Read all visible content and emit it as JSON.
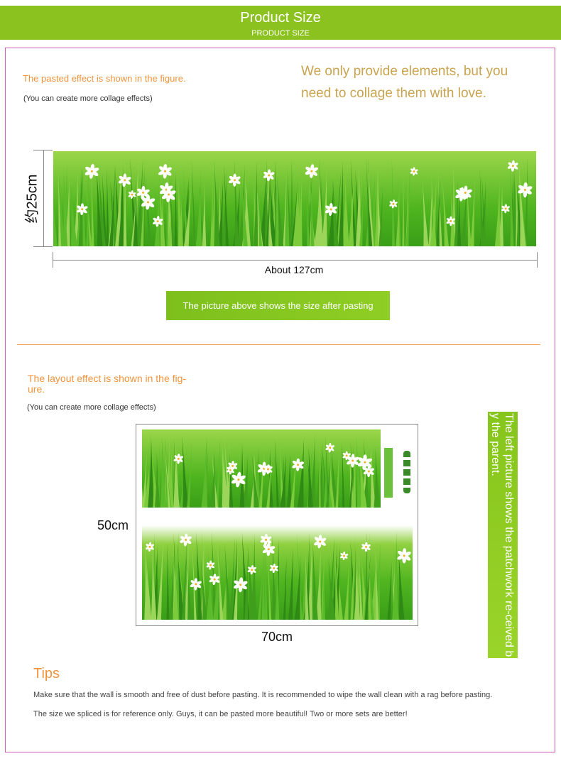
{
  "header": {
    "title": "Product Size",
    "subtitle": "PRODUCT SIZE"
  },
  "section1": {
    "heading": "The pasted effect is shown in the figure.",
    "note": "(You can create more collage effects)",
    "slogan_line1": "We only provide elements, but you",
    "slogan_line2": "need to collage them with love.",
    "height_label": "约25cm",
    "width_label": "About 127cm",
    "caption": "The picture above shows the size after pasting"
  },
  "section2": {
    "heading": "The layout effect is shown in the fig-\nure.",
    "note": "(You can create more collage effects)",
    "height_label": "50cm",
    "width_label": "70cm",
    "side_caption": "The left picture shows the patchwork re-ceived by the parent."
  },
  "tips": {
    "title": "Tips",
    "lines": [
      "Make sure that the wall is smooth and free of dust before pasting. It is recommended to wipe the wall clean with a rag before pasting.",
      "The size we spliced is for reference only. Guys, it can be pasted more beautiful! Two or more sets are better!"
    ]
  },
  "colors": {
    "brand_green": "#8cc21f",
    "accent_orange": "#f0943c",
    "border_pink": "#d35bb5",
    "gold": "#c9a44f"
  }
}
